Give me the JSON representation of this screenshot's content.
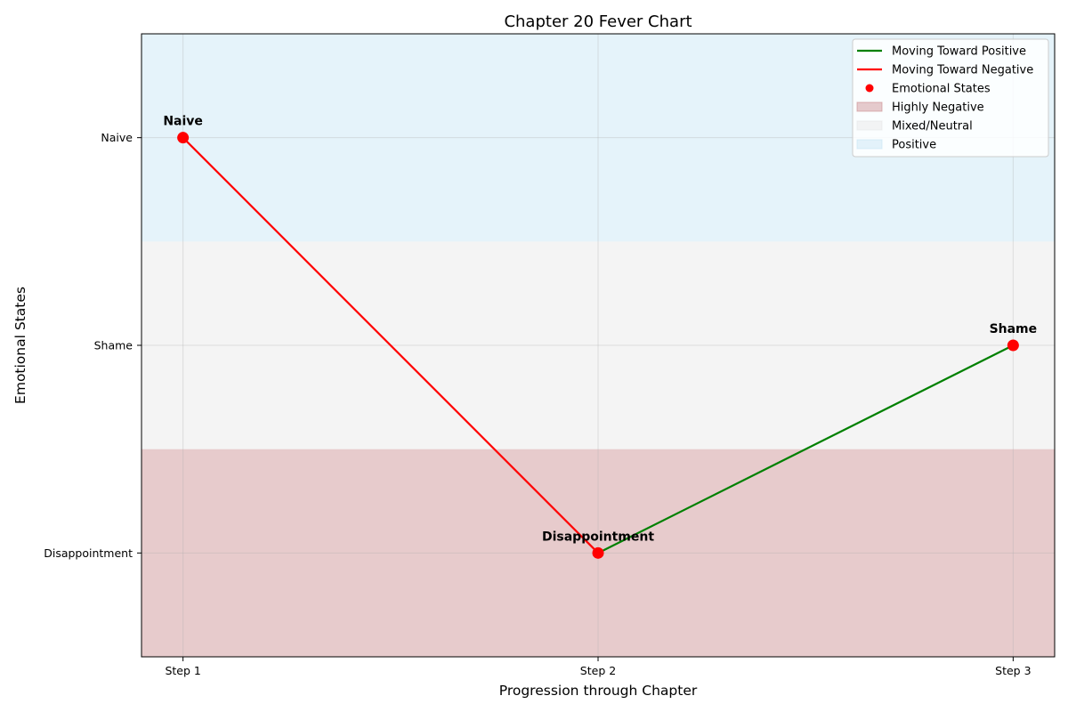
{
  "chart_data": {
    "type": "line",
    "title": "Chapter 20 Fever Chart",
    "xlabel": "Progression through Chapter",
    "ylabel": "Emotional States",
    "categories": [
      "Step 1",
      "Step 2",
      "Step 3"
    ],
    "y_levels": [
      "Disappointment",
      "Shame",
      "Naive"
    ],
    "points": [
      {
        "x": "Step 1",
        "y": "Naive",
        "label": "Naive"
      },
      {
        "x": "Step 2",
        "y": "Disappointment",
        "label": "Disappointment"
      },
      {
        "x": "Step 3",
        "y": "Shame",
        "label": "Shame"
      }
    ],
    "segments": [
      {
        "from": "Step 1",
        "to": "Step 2",
        "direction": "negative"
      },
      {
        "from": "Step 2",
        "to": "Step 3",
        "direction": "positive"
      }
    ],
    "bands": [
      {
        "name": "Highly Negative",
        "from": "Disappointment",
        "color": "#c98b8e"
      },
      {
        "name": "Mixed/Neutral",
        "from": "Shame",
        "color": "#e6e6e6"
      },
      {
        "name": "Positive",
        "from": "Naive",
        "color": "#c6e4f4"
      }
    ],
    "legend": {
      "position": "top-right",
      "entries": [
        {
          "label": "Moving Toward Positive",
          "kind": "line",
          "color": "#008000"
        },
        {
          "label": "Moving Toward Negative",
          "kind": "line",
          "color": "#ff0000"
        },
        {
          "label": "Emotional States",
          "kind": "marker",
          "color": "#ff0000"
        },
        {
          "label": "Highly Negative",
          "kind": "patch",
          "color": "#c98b8e"
        },
        {
          "label": "Mixed/Neutral",
          "kind": "patch",
          "color": "#e6e6e6"
        },
        {
          "label": "Positive",
          "kind": "patch",
          "color": "#c6e4f4"
        }
      ]
    },
    "colors": {
      "positive": "#008000",
      "negative": "#ff0000",
      "marker": "#ff0000"
    },
    "grid": true
  }
}
